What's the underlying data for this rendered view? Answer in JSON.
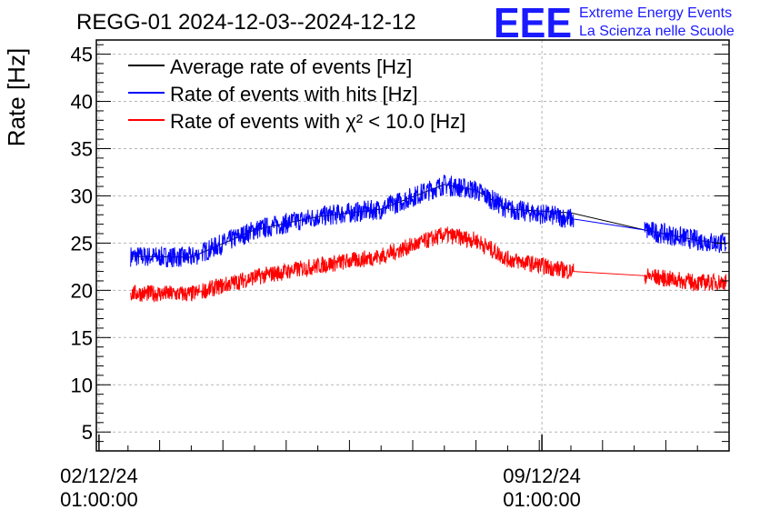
{
  "chart_data": {
    "type": "line",
    "title": "REGG-01 2024-12-03--2024-12-12",
    "ylabel": "Rate [Hz]",
    "xlabel": "",
    "ylim": [
      3,
      46.5
    ],
    "yticks": [
      5,
      10,
      15,
      20,
      25,
      30,
      35,
      40,
      45
    ],
    "xlim": [
      "2024-12-02 00:00",
      "2024-12-12 00:00"
    ],
    "xticks": [
      {
        "value": "2024-12-02 01:00",
        "line1": "02/12/24",
        "line2": "01:00:00"
      },
      {
        "value": "2024-12-09 01:00",
        "line1": "09/12/24",
        "line2": "01:00:00"
      }
    ],
    "grid": true,
    "legend_position": "top-left",
    "series": [
      {
        "name": "Average rate of events [Hz]",
        "color": "#000000",
        "noise": 0,
        "x": [
          "2024-12-02 13:00",
          "2024-12-03 12:00",
          "2024-12-04 12:00",
          "2024-12-05 12:00",
          "2024-12-06 12:00",
          "2024-12-07 12:00",
          "2024-12-08 00:00",
          "2024-12-08 12:00",
          "2024-12-09 12:00",
          "2024-12-10 00:00",
          "2024-12-10 12:00",
          "2024-12-11 12:00",
          "2024-12-11 23:00"
        ],
        "y": [
          23.6,
          23.5,
          26.4,
          27.8,
          28.6,
          31.2,
          30.6,
          28.6,
          28.2,
          27.4,
          26.6,
          25.3,
          24.9
        ]
      },
      {
        "name": "Rate of events with hits [Hz]",
        "color": "#0000ff",
        "noise": 1.1,
        "x": [
          "2024-12-02 13:00",
          "2024-12-03 12:00",
          "2024-12-04 12:00",
          "2024-12-05 12:00",
          "2024-12-06 12:00",
          "2024-12-07 12:00",
          "2024-12-08 00:00",
          "2024-12-08 12:00",
          "2024-12-09 12:00",
          "2024-12-10 00:00",
          "2024-12-10 12:00",
          "2024-12-11 12:00",
          "2024-12-11 23:00"
        ],
        "y": [
          23.6,
          23.5,
          26.4,
          27.8,
          28.6,
          31.2,
          30.6,
          28.6,
          27.6,
          27.0,
          26.6,
          25.3,
          24.9
        ]
      },
      {
        "name": "Rate of events with χ² < 10.0 [Hz]",
        "color": "#ff0000",
        "noise": 0.9,
        "x": [
          "2024-12-02 13:00",
          "2024-12-03 12:00",
          "2024-12-04 12:00",
          "2024-12-05 12:00",
          "2024-12-06 12:00",
          "2024-12-07 12:00",
          "2024-12-08 00:00",
          "2024-12-08 12:00",
          "2024-12-09 12:00",
          "2024-12-10 00:00",
          "2024-12-10 12:00",
          "2024-12-11 12:00",
          "2024-12-11 23:00"
        ],
        "y": [
          19.7,
          19.6,
          21.4,
          22.6,
          23.6,
          25.9,
          25.3,
          23.3,
          22.0,
          22.0,
          21.7,
          20.8,
          20.9
        ]
      }
    ],
    "data_gaps": [
      {
        "from": "2024-12-03 15:00",
        "to": "2024-12-03 16:00"
      },
      {
        "from": "2024-12-09 13:00",
        "to": "2024-12-10 16:00"
      }
    ]
  },
  "logo": {
    "mark": "EEE",
    "line1": "Extreme Energy Events",
    "line2": "La Scienza nelle Scuole",
    "color": "#1a1aff"
  }
}
